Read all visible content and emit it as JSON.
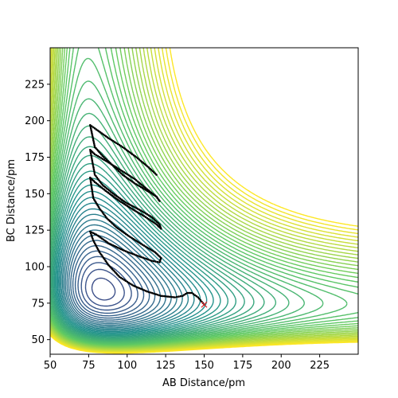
{
  "chart_data": {
    "type": "contour",
    "title": "",
    "xlabel": "AB Distance/pm",
    "ylabel": "BC Distance/pm",
    "xlim": [
      50,
      250
    ],
    "ylim": [
      40,
      250
    ],
    "x_ticks": [
      "50",
      "75",
      "100",
      "125",
      "150",
      "175",
      "200",
      "225"
    ],
    "y_ticks": [
      "50",
      "75",
      "100",
      "125",
      "150",
      "175",
      "200",
      "225"
    ],
    "colormap": [
      "#440154",
      "#3b528b",
      "#21918c",
      "#5ec962",
      "#fde725"
    ],
    "grid": false,
    "legend": "none",
    "trajectory": {
      "color": "#000000",
      "points": [
        [
          150,
          74
        ],
        [
          146,
          79
        ],
        [
          142,
          82
        ],
        [
          139,
          82
        ],
        [
          136,
          80
        ],
        [
          131,
          79
        ],
        [
          122,
          80
        ],
        [
          113,
          83
        ],
        [
          104,
          87
        ],
        [
          95,
          93
        ],
        [
          88,
          101
        ],
        [
          82,
          110
        ],
        [
          78,
          118
        ],
        [
          76,
          124
        ],
        [
          80,
          122
        ],
        [
          88,
          116
        ],
        [
          98,
          111
        ],
        [
          108,
          107
        ],
        [
          116,
          104
        ],
        [
          121,
          103
        ],
        [
          122,
          106
        ],
        [
          118,
          110
        ],
        [
          110,
          115
        ],
        [
          101,
          121
        ],
        [
          93,
          127
        ],
        [
          87,
          133
        ],
        [
          82,
          140
        ],
        [
          78,
          147
        ],
        [
          76,
          161
        ],
        [
          79,
          158
        ],
        [
          86,
          152
        ],
        [
          95,
          145
        ],
        [
          104,
          139
        ],
        [
          112,
          134
        ],
        [
          119,
          129
        ],
        [
          122,
          126
        ],
        [
          121,
          129
        ],
        [
          116,
          134
        ],
        [
          108,
          139
        ],
        [
          99,
          144
        ],
        [
          91,
          150
        ],
        [
          84,
          156
        ],
        [
          79,
          163
        ],
        [
          76,
          180
        ],
        [
          79,
          177
        ],
        [
          87,
          172
        ],
        [
          96,
          166
        ],
        [
          105,
          160
        ],
        [
          113,
          153
        ],
        [
          119,
          148
        ],
        [
          121,
          145
        ],
        [
          119,
          148
        ],
        [
          113,
          152
        ],
        [
          105,
          157
        ],
        [
          97,
          163
        ],
        [
          90,
          170
        ],
        [
          84,
          176
        ],
        [
          79,
          182
        ],
        [
          76,
          197
        ],
        [
          80,
          194
        ],
        [
          88,
          188
        ],
        [
          97,
          182
        ],
        [
          106,
          175
        ],
        [
          114,
          168
        ],
        [
          119,
          163
        ]
      ]
    },
    "end_marker": {
      "x": 150,
      "y": 74,
      "color": "#d62728",
      "symbol": "x"
    }
  }
}
